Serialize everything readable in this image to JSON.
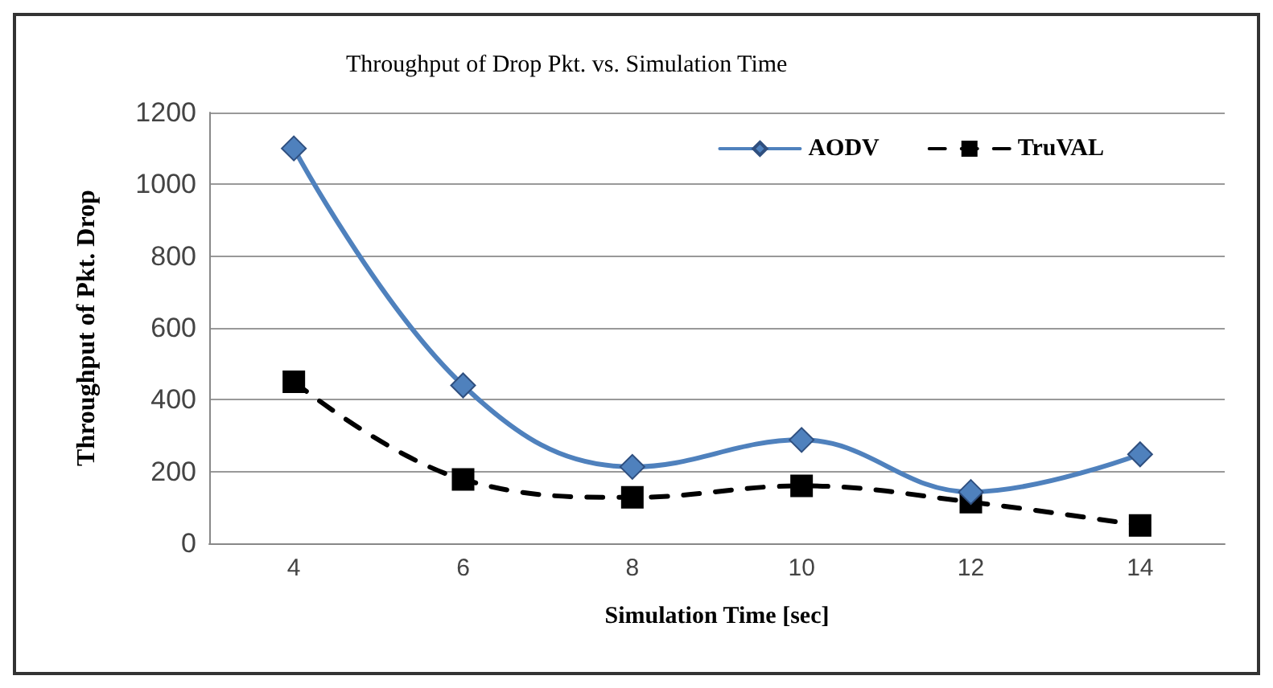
{
  "chart_data": {
    "type": "line",
    "title": "Throughput of Drop Pkt. vs. Simulation Time",
    "xlabel": "Simulation Time [sec]",
    "ylabel": "Throughput of Pkt. Drop",
    "categories": [
      "4",
      "6",
      "8",
      "10",
      "12",
      "14"
    ],
    "series": [
      {
        "name": "AODV",
        "color": "#4f81bd",
        "values": [
          1100,
          440,
          213,
          288,
          143,
          248
        ],
        "marker": "diamond",
        "line_style": "solid"
      },
      {
        "name": "TruVAL",
        "color": "#000000",
        "values": [
          450,
          178,
          128,
          160,
          115,
          50
        ],
        "marker": "square",
        "line_style": "dashed"
      }
    ],
    "ylim": [
      0,
      1200
    ],
    "yticks": [
      0,
      200,
      400,
      600,
      800,
      1000,
      1200
    ],
    "grid": "y",
    "legend": "top right"
  }
}
